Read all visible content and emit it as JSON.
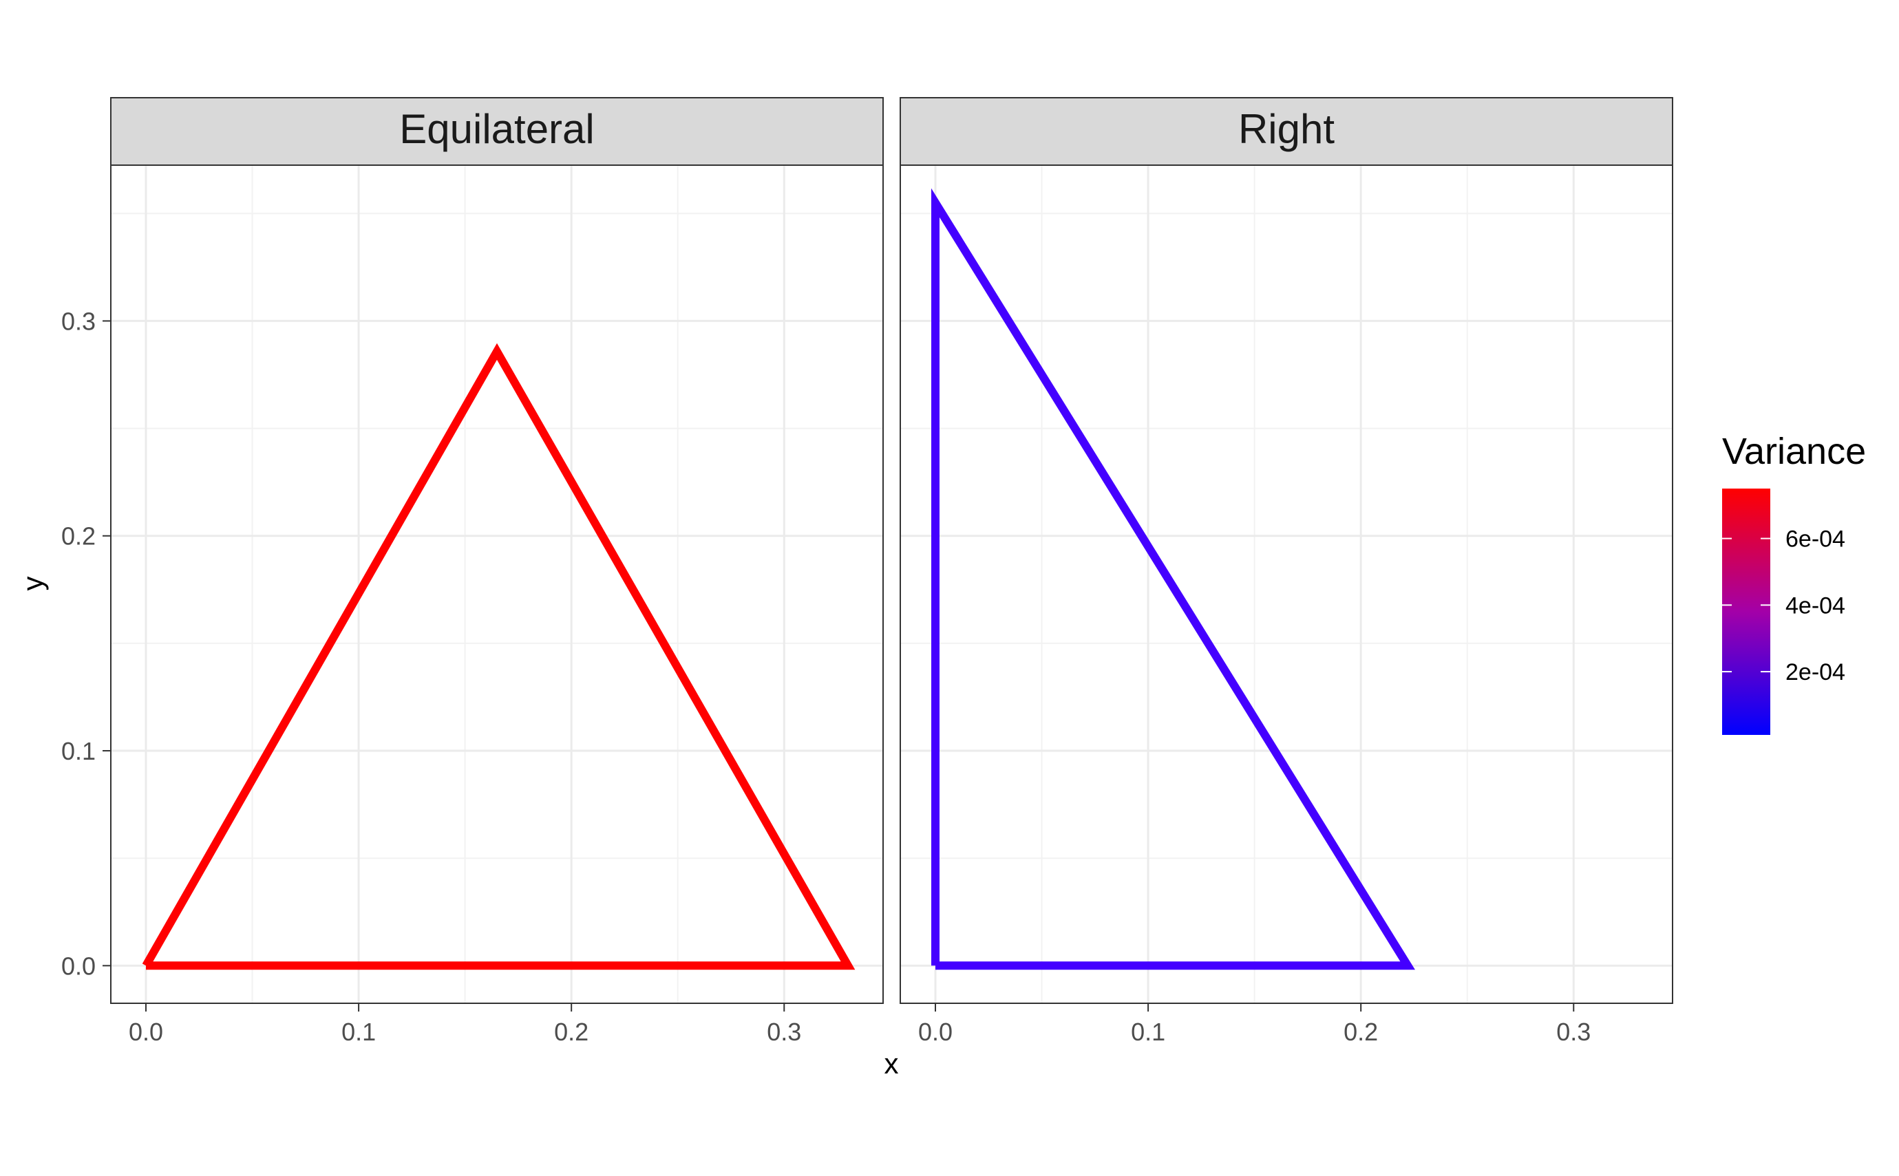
{
  "chart_data": {
    "type": "line",
    "xlabel": "x",
    "ylabel": "y",
    "xlim": [
      -0.0165,
      0.3465
    ],
    "ylim": [
      -0.0175,
      0.3725
    ],
    "x_ticks": [
      0.0,
      0.1,
      0.2,
      0.3
    ],
    "x_tick_labels": [
      "0.0",
      "0.1",
      "0.2",
      "0.3"
    ],
    "y_ticks": [
      0.0,
      0.1,
      0.2,
      0.3
    ],
    "y_tick_labels": [
      "0.0",
      "0.1",
      "0.2",
      "0.3"
    ],
    "grid": true,
    "facets": [
      {
        "strip_label": "Equilateral",
        "color": "#ff0000",
        "variance": 0.00075,
        "x": [
          0.0,
          0.165,
          0.33,
          0.0
        ],
        "y": [
          0.0,
          0.2858,
          0.0,
          0.0
        ]
      },
      {
        "strip_label": "Right",
        "color": "#4400ff",
        "variance": 6e-05,
        "x": [
          0.0,
          0.0,
          0.222,
          0.0
        ],
        "y": [
          0.0,
          0.355,
          0.0,
          0.0
        ]
      }
    ],
    "legend": {
      "title": "Variance",
      "position": "right",
      "type": "colorbar",
      "low_color": "#0000ff",
      "high_color": "#ff0000",
      "range": [
        1e-05,
        0.00075
      ],
      "breaks": [
        0.0002,
        0.0004,
        0.0006
      ],
      "break_labels": [
        "2e-04",
        "4e-04",
        "6e-04"
      ]
    }
  }
}
